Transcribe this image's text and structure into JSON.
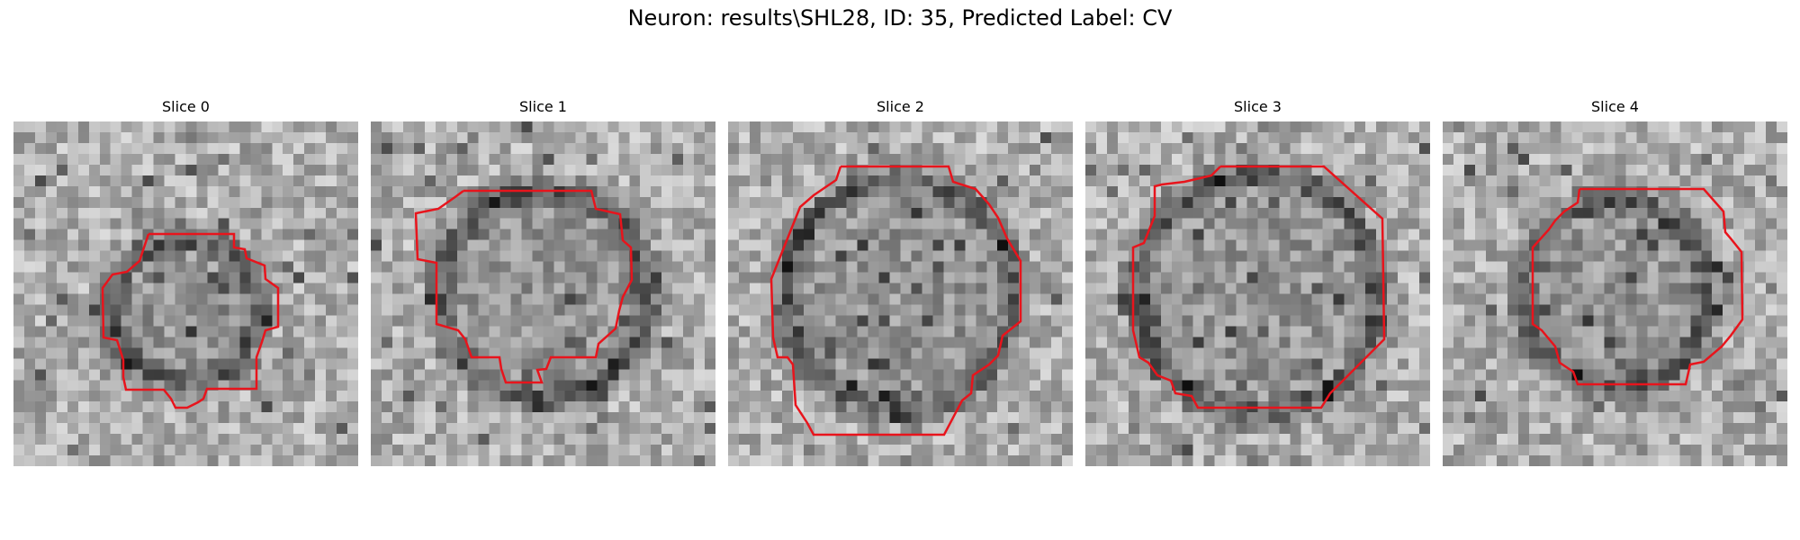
{
  "figure": {
    "title": "Neuron: results\\SHL28, ID: 35, Predicted Label: CV"
  },
  "panels": [
    {
      "title": "Slice 0",
      "contour_color": "#e8141c"
    },
    {
      "title": "Slice 1",
      "contour_color": "#e8141c"
    },
    {
      "title": "Slice 2",
      "contour_color": "#e8141c"
    },
    {
      "title": "Slice 3",
      "contour_color": "#e8141c"
    },
    {
      "title": "Slice 4",
      "contour_color": "#e8141c"
    }
  ]
}
